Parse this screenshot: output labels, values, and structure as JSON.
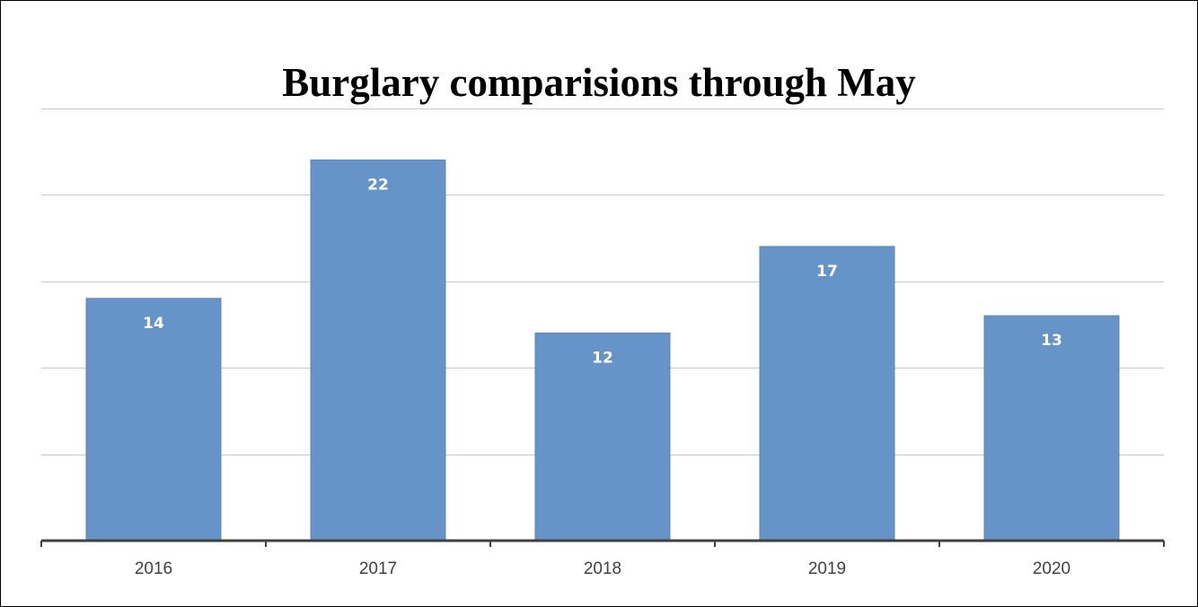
{
  "chart_data": {
    "type": "bar",
    "title": "Burglary comparisions through May",
    "xlabel": "",
    "ylabel": "",
    "categories": [
      "2016",
      "2017",
      "2018",
      "2019",
      "2020"
    ],
    "values": [
      14,
      22,
      12,
      17,
      13
    ],
    "ylim": [
      0,
      25
    ],
    "y_gridline_step": 5,
    "grid": true,
    "legend": "none",
    "data_labels": "inside-end",
    "colors": {
      "bar": "#6794C8",
      "bar_edge": "#5B87BC",
      "gridline": "#C9C9C9",
      "axis": "#404040",
      "data_label": "#FFFFFF"
    }
  }
}
